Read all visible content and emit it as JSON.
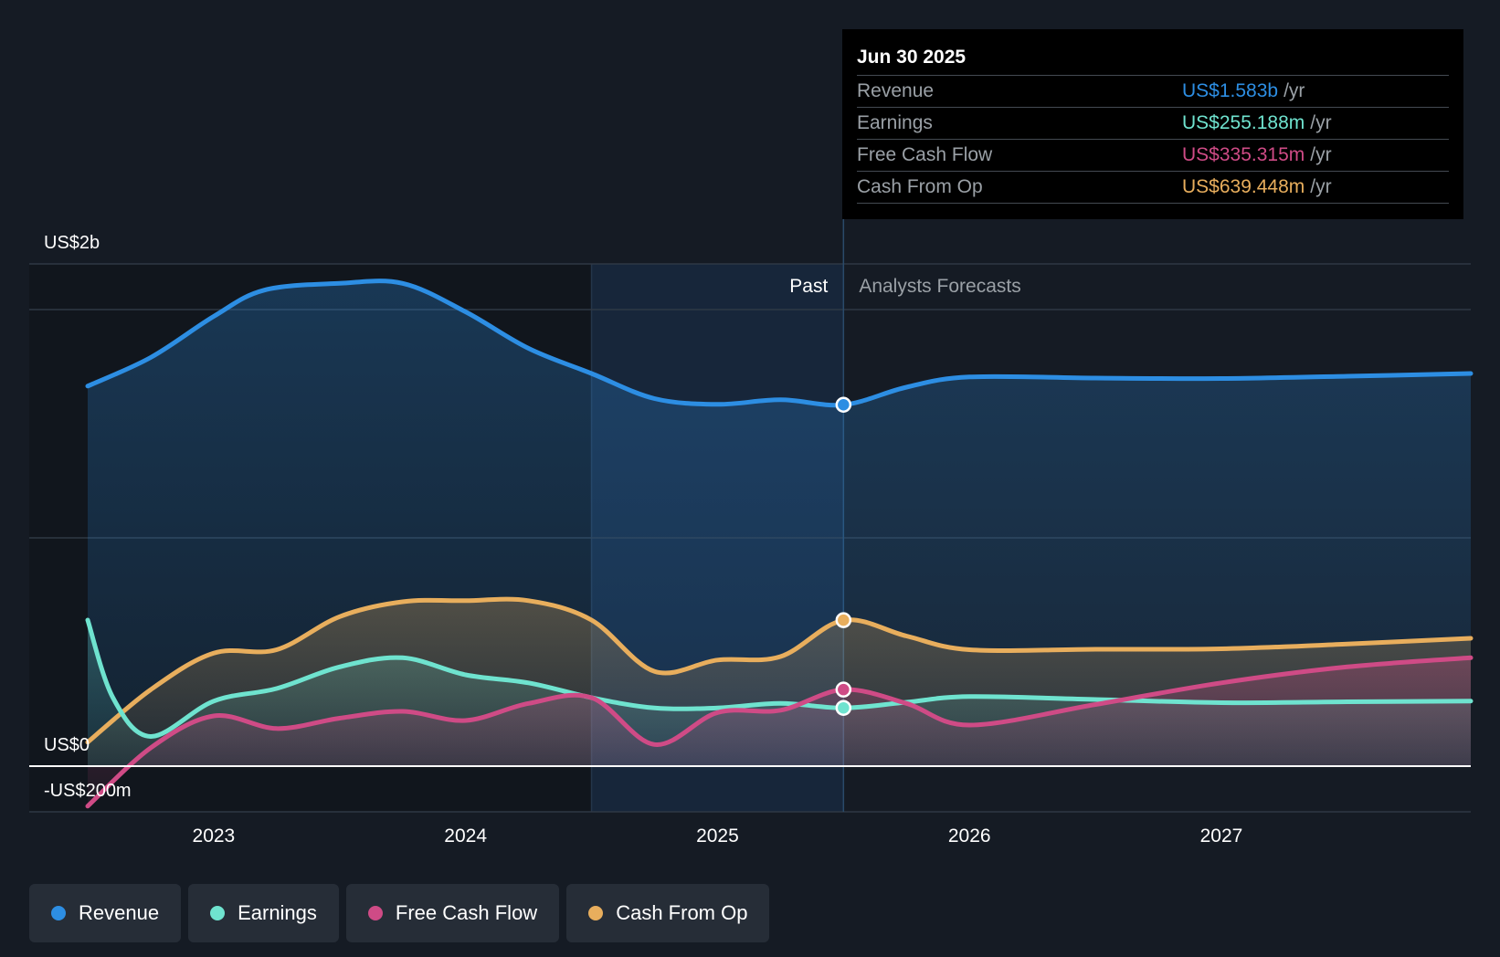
{
  "colors": {
    "revenue": "#2d8ee3",
    "earnings": "#6fe3cf",
    "fcf": "#cf4b86",
    "cfo": "#e8ae5d",
    "grid": "#2f3844",
    "zero": "#ffffff",
    "axis_text": "#ffffff",
    "muted": "#9aa0a6"
  },
  "tooltip": {
    "date": "Jun 30 2025",
    "rows": [
      {
        "label": "Revenue",
        "value": "US$1.583b",
        "unit": "/yr",
        "key": "revenue"
      },
      {
        "label": "Earnings",
        "value": "US$255.188m",
        "unit": "/yr",
        "key": "earnings"
      },
      {
        "label": "Free Cash Flow",
        "value": "US$335.315m",
        "unit": "/yr",
        "key": "fcf"
      },
      {
        "label": "Cash From Op",
        "value": "US$639.448m",
        "unit": "/yr",
        "key": "cfo"
      }
    ]
  },
  "legend": [
    {
      "label": "Revenue",
      "key": "revenue"
    },
    {
      "label": "Earnings",
      "key": "earnings"
    },
    {
      "label": "Free Cash Flow",
      "key": "fcf"
    },
    {
      "label": "Cash From Op",
      "key": "cfo"
    }
  ],
  "chart_data": {
    "type": "line",
    "title": "",
    "xlabel": "",
    "ylabel": "",
    "y_axis_labels": [
      "US$2b",
      "US$0",
      "-US$200m"
    ],
    "x_ticks": [
      {
        "label": "2023",
        "x": 2023.0
      },
      {
        "label": "2024",
        "x": 2024.0
      },
      {
        "label": "2025",
        "x": 2025.0
      },
      {
        "label": "2026",
        "x": 2026.0
      },
      {
        "label": "2027",
        "x": 2027.0
      }
    ],
    "xlim": [
      2022.5,
      2027.99
    ],
    "ylim": [
      -200,
      2200
    ],
    "past_label": "Past",
    "forecast_label": "Analysts Forecasts",
    "divider_x": 2025.5,
    "shade_start_x": 2024.5,
    "series": [
      {
        "name": "Revenue",
        "key": "revenue",
        "area": true,
        "points": [
          [
            2022.5,
            1665
          ],
          [
            2022.75,
            1790
          ],
          [
            2023.0,
            1970
          ],
          [
            2023.2,
            2085
          ],
          [
            2023.5,
            2115
          ],
          [
            2023.75,
            2115
          ],
          [
            2024.0,
            1990
          ],
          [
            2024.25,
            1830
          ],
          [
            2024.5,
            1720
          ],
          [
            2024.75,
            1610
          ],
          [
            2025.0,
            1585
          ],
          [
            2025.25,
            1605
          ],
          [
            2025.5,
            1583
          ],
          [
            2025.75,
            1660
          ],
          [
            2026.0,
            1705
          ],
          [
            2026.5,
            1700
          ],
          [
            2027.0,
            1698
          ],
          [
            2027.5,
            1708
          ],
          [
            2027.99,
            1720
          ]
        ]
      },
      {
        "name": "Cash From Op",
        "key": "cfo",
        "area": true,
        "points": [
          [
            2022.5,
            105
          ],
          [
            2022.75,
            335
          ],
          [
            2023.0,
            495
          ],
          [
            2023.25,
            510
          ],
          [
            2023.5,
            655
          ],
          [
            2023.75,
            720
          ],
          [
            2024.0,
            725
          ],
          [
            2024.25,
            725
          ],
          [
            2024.5,
            640
          ],
          [
            2024.75,
            415
          ],
          [
            2025.0,
            465
          ],
          [
            2025.25,
            480
          ],
          [
            2025.5,
            639
          ],
          [
            2025.75,
            570
          ],
          [
            2026.0,
            510
          ],
          [
            2026.5,
            512
          ],
          [
            2027.0,
            514
          ],
          [
            2027.5,
            535
          ],
          [
            2027.99,
            560
          ]
        ]
      },
      {
        "name": "Earnings",
        "key": "earnings",
        "area": true,
        "points": [
          [
            2022.5,
            640
          ],
          [
            2022.6,
            300
          ],
          [
            2022.75,
            130
          ],
          [
            2023.0,
            285
          ],
          [
            2023.25,
            340
          ],
          [
            2023.5,
            435
          ],
          [
            2023.75,
            475
          ],
          [
            2024.0,
            400
          ],
          [
            2024.25,
            365
          ],
          [
            2024.5,
            300
          ],
          [
            2024.75,
            255
          ],
          [
            2025.0,
            255
          ],
          [
            2025.25,
            275
          ],
          [
            2025.5,
            255
          ],
          [
            2025.75,
            280
          ],
          [
            2026.0,
            305
          ],
          [
            2026.5,
            292
          ],
          [
            2027.0,
            278
          ],
          [
            2027.5,
            282
          ],
          [
            2027.99,
            285
          ]
        ]
      },
      {
        "name": "Free Cash Flow",
        "key": "fcf",
        "area": true,
        "points": [
          [
            2022.5,
            -175
          ],
          [
            2022.75,
            80
          ],
          [
            2023.0,
            220
          ],
          [
            2023.25,
            165
          ],
          [
            2023.5,
            210
          ],
          [
            2023.75,
            240
          ],
          [
            2024.0,
            200
          ],
          [
            2024.25,
            275
          ],
          [
            2024.5,
            300
          ],
          [
            2024.75,
            95
          ],
          [
            2025.0,
            235
          ],
          [
            2025.25,
            245
          ],
          [
            2025.5,
            335
          ],
          [
            2025.75,
            275
          ],
          [
            2026.0,
            180
          ],
          [
            2026.5,
            270
          ],
          [
            2027.0,
            365
          ],
          [
            2027.5,
            435
          ],
          [
            2027.99,
            475
          ]
        ]
      }
    ],
    "highlight_x": 2025.5,
    "highlight_values": {
      "revenue": 1583,
      "earnings": 255.188,
      "fcf": 335.315,
      "cfo": 639.448
    }
  }
}
